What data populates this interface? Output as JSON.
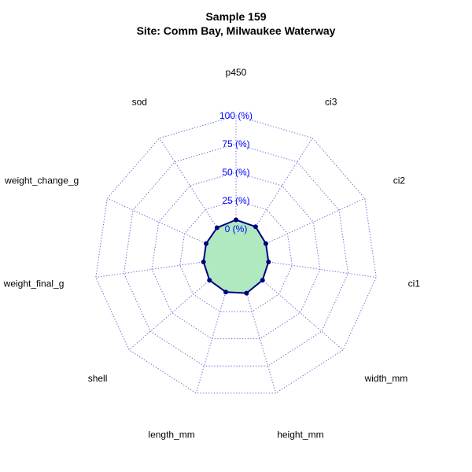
{
  "chart_data": {
    "type": "radar",
    "title_line1": "Sample 159",
    "title_line2": "Site: Comm Bay, Milwaukee Waterway",
    "axes": [
      "p450",
      "ci3",
      "ci2",
      "ci1",
      "width_mm",
      "height_mm",
      "length_mm",
      "shell",
      "weight_final_g",
      "weight_change_g",
      "sod"
    ],
    "values": [
      8,
      7,
      4,
      4,
      6,
      8,
      7,
      6,
      4,
      4,
      6
    ],
    "range": [
      0,
      100
    ],
    "unit": "%",
    "ticks": [
      {
        "value": 0,
        "label": "0 (%)"
      },
      {
        "value": 25,
        "label": "25 (%)"
      },
      {
        "value": 50,
        "label": "50 (%)"
      },
      {
        "value": 75,
        "label": "75 (%)"
      },
      {
        "value": 100,
        "label": "100 (%)"
      }
    ],
    "grid": true,
    "colors": {
      "fill": "#b0e8c0",
      "line": "#000080",
      "point": "#000080",
      "grid": "#6666cc",
      "tick_label": "#0000ff"
    }
  }
}
